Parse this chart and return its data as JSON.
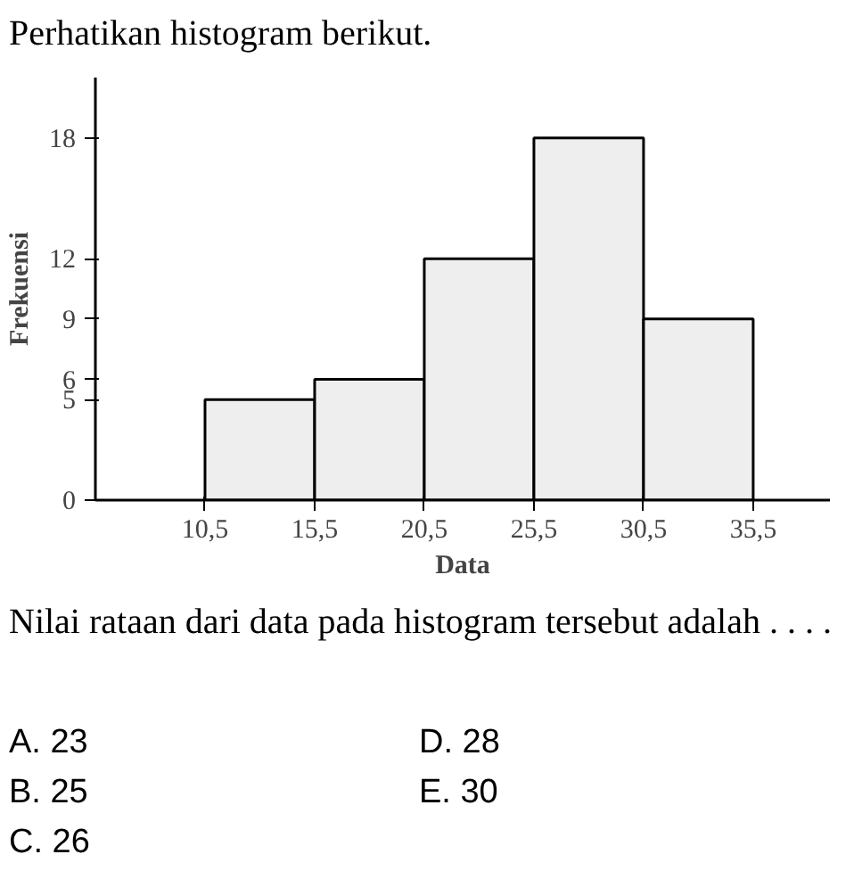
{
  "chart_data": {
    "type": "histogram",
    "title": "Perhatikan histogram berikut.",
    "xlabel": "Data",
    "ylabel": "Frekuensi",
    "bins": [
      10.5,
      15.5,
      20.5,
      25.5,
      30.5,
      35.5
    ],
    "values": [
      5,
      6,
      12,
      18,
      9
    ],
    "color": "#eeeeee",
    "xlim": [
      5.5,
      39
    ],
    "ylim": [
      0,
      21
    ],
    "xticks": [
      {
        "value": 10.5,
        "label": "10,5"
      },
      {
        "value": 15.5,
        "label": "15,5"
      },
      {
        "value": 20.5,
        "label": "20,5"
      },
      {
        "value": 25.5,
        "label": "25,5"
      },
      {
        "value": 30.5,
        "label": "30,5"
      },
      {
        "value": 35.5,
        "label": "35,5"
      }
    ],
    "yticks": [
      0,
      5,
      6,
      9,
      12,
      18
    ],
    "grid": false,
    "annotations": [
      "Nilai rataan dari data pada histogram tersebut adalah . . . .",
      "A.  23",
      "B.  25",
      "C.  26",
      "D.  28",
      "E.  30"
    ]
  }
}
